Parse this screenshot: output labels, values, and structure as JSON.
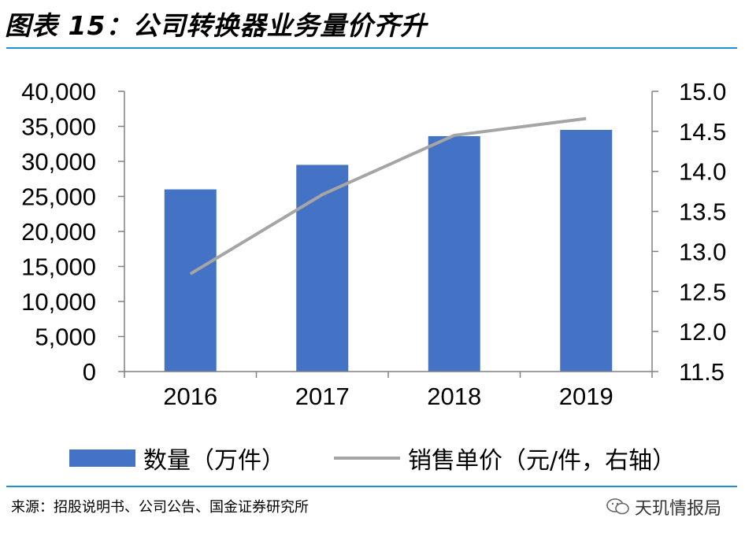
{
  "header": {
    "title": "图表 15：公司转换器业务量价齐升"
  },
  "footer": {
    "source": "来源：招股说明书、公司公告、国金证券研究所",
    "watermark": "天玑情报局"
  },
  "colors": {
    "bar": "#4472c4",
    "line": "#a5a5a5",
    "rule": "#1f8fd1"
  },
  "chart_data": {
    "type": "bar",
    "categories": [
      "2016",
      "2017",
      "2018",
      "2019"
    ],
    "series": [
      {
        "name": "数量（万件）",
        "type": "bar",
        "axis": "left",
        "values": [
          26000,
          29500,
          33600,
          34500
        ]
      },
      {
        "name": "销售单价（元/件，右轴）",
        "type": "line",
        "axis": "right",
        "values": [
          12.72,
          13.71,
          14.45,
          14.66
        ]
      }
    ],
    "ylim_left": [
      0,
      40000
    ],
    "yticks_left": [
      "0",
      "5,000",
      "10,000",
      "15,000",
      "20,000",
      "25,000",
      "30,000",
      "35,000",
      "40,000"
    ],
    "ylim_right": [
      11.5,
      15.0
    ],
    "yticks_right": [
      "11.5",
      "12.0",
      "12.5",
      "13.0",
      "13.5",
      "14.0",
      "14.5",
      "15.0"
    ],
    "grid": false,
    "legend": "bottom"
  }
}
